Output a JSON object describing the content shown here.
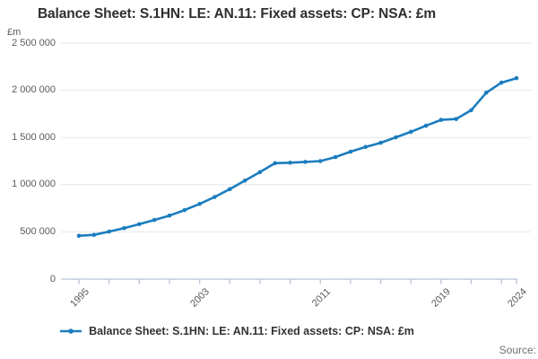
{
  "header": {
    "title": "Balance Sheet: S.1HN: LE: AN.11: Fixed assets: CP: NSA: £m"
  },
  "source": {
    "label": "Source:"
  },
  "chart_data": {
    "type": "line",
    "title": "Balance Sheet: S.1HN: LE: AN.11: Fixed assets: CP: NSA: £m",
    "xlabel": "",
    "ylabel": "£m",
    "ylim": [
      0,
      2500000
    ],
    "xlim": [
      1995,
      2024
    ],
    "grid": true,
    "legend_position": "bottom",
    "y_tick_values": [
      0,
      500000,
      1000000,
      1500000,
      2000000,
      2500000
    ],
    "y_tick_labels": [
      "0",
      "500 000",
      "1 000 000",
      "1 500 000",
      "2 000 000",
      "2 500 000"
    ],
    "x_minor_tick_years": [
      1995,
      1997,
      1999,
      2001,
      2003,
      2005,
      2007,
      2009,
      2011,
      2013,
      2015,
      2017,
      2019,
      2021,
      2023,
      2024
    ],
    "x_label_ticks": [
      {
        "year": 1995,
        "label": "1995"
      },
      {
        "year": 2003,
        "label": "2003"
      },
      {
        "year": 2011,
        "label": "2011"
      },
      {
        "year": 2019,
        "label": "2019"
      },
      {
        "year": 2024,
        "label": "2024"
      }
    ],
    "series": [
      {
        "name": "Balance Sheet: S.1HN: LE: AN.11: Fixed assets: CP: NSA: £m",
        "x": [
          1995,
          1996,
          1997,
          1998,
          1999,
          2000,
          2001,
          2002,
          2003,
          2004,
          2005,
          2006,
          2007,
          2008,
          2009,
          2010,
          2011,
          2012,
          2013,
          2014,
          2015,
          2016,
          2017,
          2018,
          2019,
          2020,
          2021,
          2022,
          2023,
          2024
        ],
        "values": [
          459000,
          469000,
          504000,
          540000,
          582000,
          626000,
          673000,
          731000,
          797000,
          870000,
          953000,
          1043000,
          1133000,
          1228000,
          1233000,
          1241000,
          1250000,
          1293000,
          1350000,
          1400000,
          1444000,
          1502000,
          1560000,
          1625000,
          1686000,
          1696000,
          1789000,
          1974000,
          2081000,
          2128000
        ]
      }
    ],
    "colors": {
      "line": "#1b7dbe",
      "axis": "#b7c3d9",
      "grid": "#e6e6e6",
      "title_text": "#2e2e2e",
      "tick_text": "#5a5a5a",
      "legend_text": "#333333",
      "source_text": "#707070",
      "background": "#ffffff"
    }
  }
}
